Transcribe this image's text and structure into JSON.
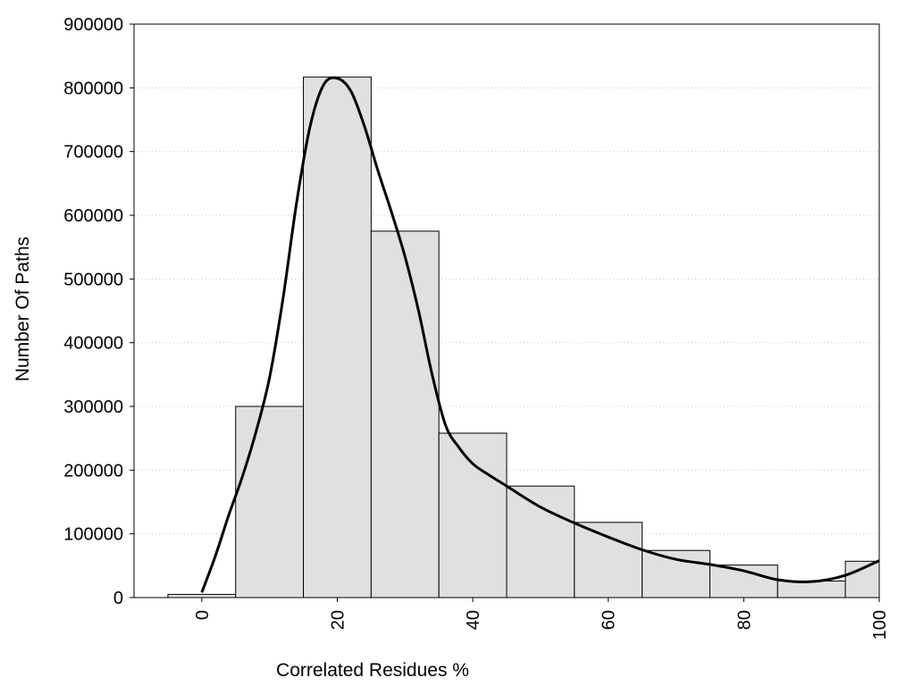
{
  "chart_data": {
    "type": "bar",
    "title": "",
    "xlabel": "Correlated Residues %",
    "ylabel": "Number Of Paths",
    "xlim": [
      -10,
      100
    ],
    "ylim": [
      0,
      900000
    ],
    "xticks": [
      0,
      20,
      40,
      60,
      80,
      100
    ],
    "yticks": [
      0,
      100000,
      200000,
      300000,
      400000,
      500000,
      600000,
      700000,
      800000,
      900000
    ],
    "grid": "y-dotted",
    "bar_width": 10,
    "bars": {
      "x": [
        0,
        10,
        20,
        30,
        40,
        50,
        60,
        70,
        80,
        90,
        100
      ],
      "values": [
        5000,
        300000,
        817000,
        575000,
        258000,
        175000,
        118000,
        74000,
        51000,
        26000,
        57000
      ]
    },
    "curve": {
      "type": "line",
      "x": [
        0,
        2,
        4,
        6,
        8,
        10,
        12,
        14,
        16,
        18,
        20,
        22,
        24,
        26,
        28,
        30,
        32,
        34,
        36,
        38,
        40,
        42,
        45,
        50,
        55,
        60,
        65,
        70,
        75,
        80,
        85,
        90,
        95,
        100
      ],
      "y": [
        8000,
        65000,
        130000,
        190000,
        260000,
        345000,
        470000,
        620000,
        740000,
        805000,
        815000,
        795000,
        740000,
        670000,
        605000,
        535000,
        450000,
        350000,
        270000,
        235000,
        210000,
        195000,
        175000,
        142000,
        117000,
        95000,
        75000,
        60000,
        52000,
        42000,
        28000,
        25000,
        35000,
        58000
      ]
    }
  }
}
